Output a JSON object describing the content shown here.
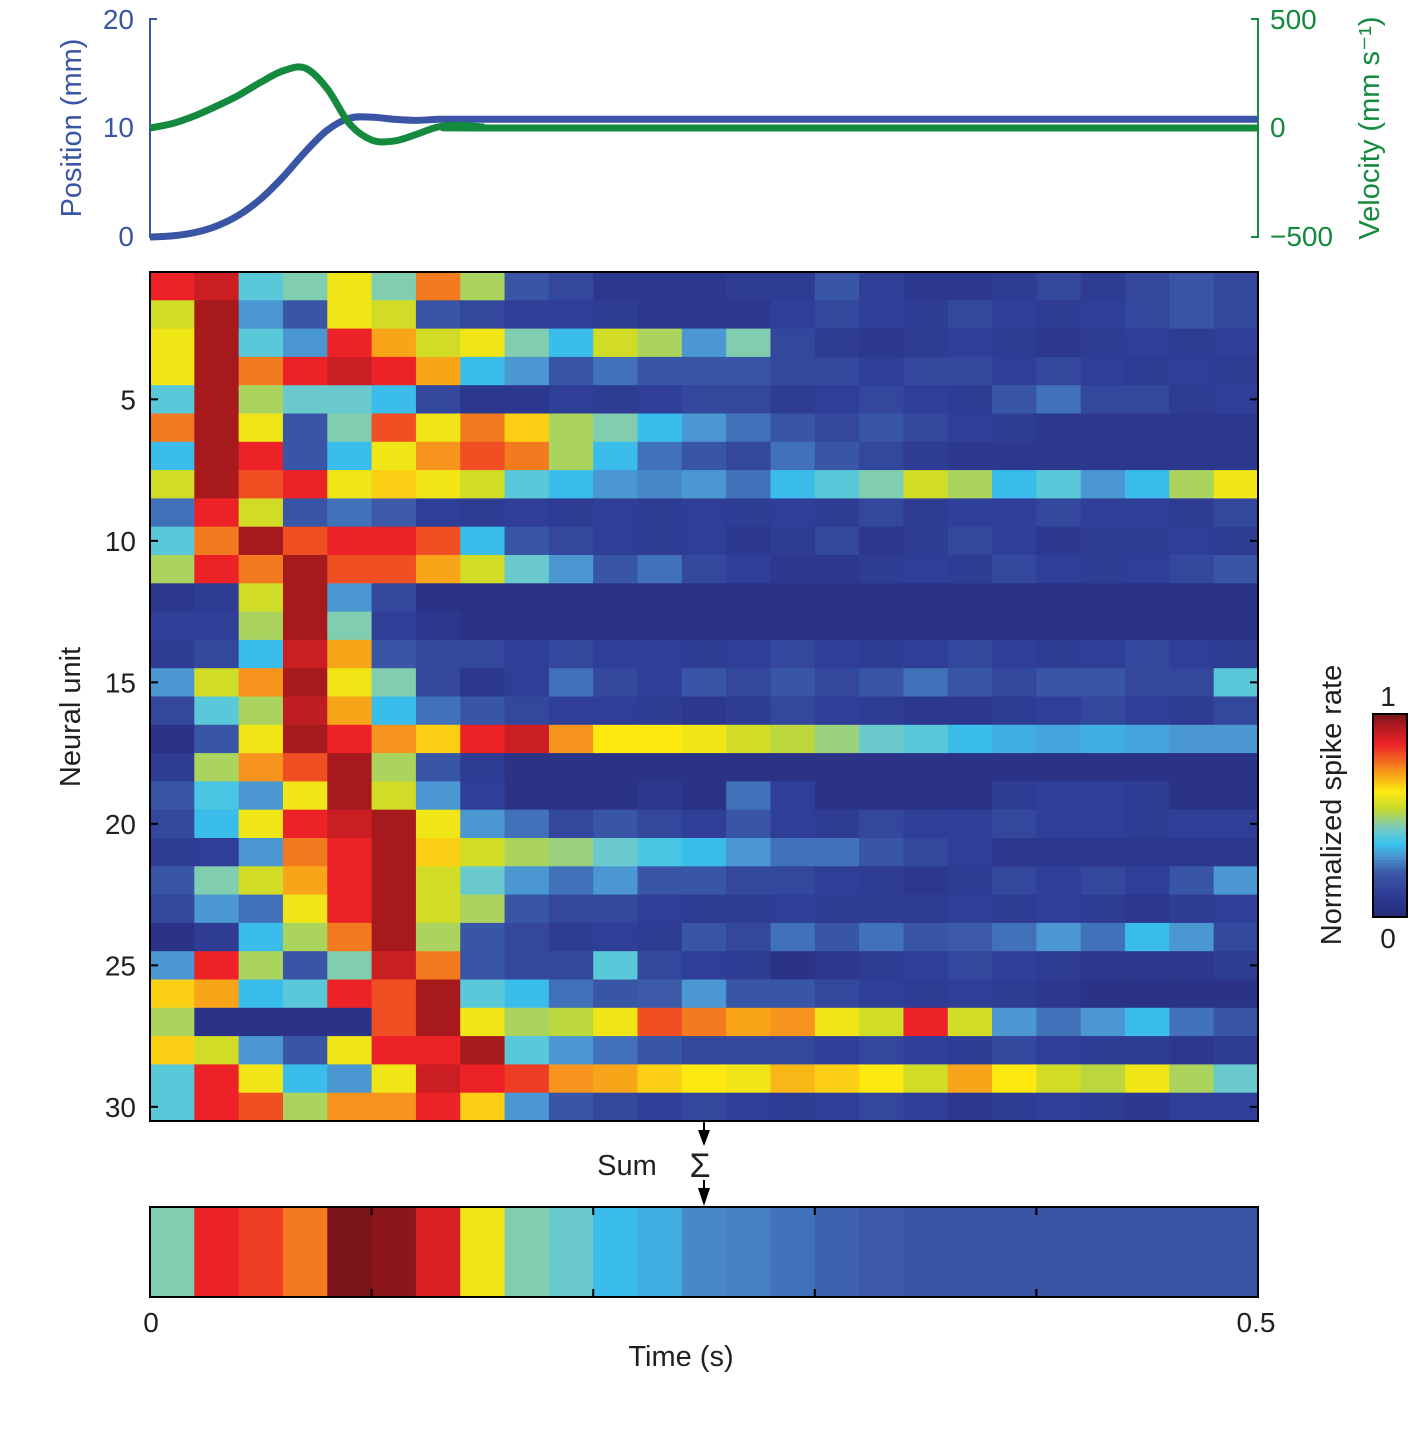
{
  "colors": {
    "position": "#3a55a5",
    "velocity": "#138a3e",
    "colormap": [
      [
        0,
        "#262a78"
      ],
      [
        0.12,
        "#2f3f98"
      ],
      [
        0.22,
        "#3c5aa8"
      ],
      [
        0.3,
        "#4a97d2"
      ],
      [
        0.36,
        "#38c4f0"
      ],
      [
        0.44,
        "#79cbc0"
      ],
      [
        0.53,
        "#c4d92e"
      ],
      [
        0.62,
        "#fde80f"
      ],
      [
        0.72,
        "#f7941d"
      ],
      [
        0.85,
        "#ec2227"
      ],
      [
        0.93,
        "#b71c21"
      ],
      [
        1,
        "#7a1418"
      ]
    ]
  },
  "chart_data": [
    {
      "type": "line",
      "panel": "kinematics",
      "xlim": [
        0,
        0.5
      ],
      "left_axis": {
        "label": "Position (mm)",
        "ylim": [
          0,
          20
        ],
        "ticks": [
          "0",
          "10",
          "20"
        ]
      },
      "right_axis": {
        "label": "Velocity (mm s⁻¹)",
        "ylim": [
          -500,
          500
        ],
        "ticks": [
          "−500",
          "0",
          "500"
        ]
      },
      "x": [
        0,
        0.01,
        0.02,
        0.03,
        0.04,
        0.05,
        0.06,
        0.07,
        0.08,
        0.09,
        0.1,
        0.11,
        0.12,
        0.13,
        0.14,
        0.15,
        0.16,
        0.5
      ],
      "series": [
        {
          "axis": "left",
          "values": [
            0,
            0.1,
            0.4,
            1.0,
            2.0,
            3.5,
            5.5,
            7.8,
            9.8,
            10.9,
            11.0,
            10.8,
            10.7,
            10.8,
            10.8,
            10.8,
            10.8,
            10.8
          ]
        },
        {
          "axis": "right",
          "values": [
            0,
            20,
            55,
            100,
            150,
            210,
            262,
            275,
            180,
            20,
            -55,
            -60,
            -30,
            5,
            12,
            5,
            0,
            0
          ]
        }
      ]
    },
    {
      "type": "heatmap",
      "panel": "neural-units",
      "xlim": [
        0,
        0.5
      ],
      "ylabel": "Neural unit",
      "yticks": [
        "5",
        "10",
        "15",
        "20",
        "25",
        "30"
      ],
      "colorbar": {
        "label": "Normalized spike rate",
        "min_label": "0",
        "max_label": "1",
        "range": [
          0,
          1
        ]
      },
      "rows": [
        [
          0.85,
          0.9,
          0.4,
          0.45,
          0.6,
          0.45,
          0.75,
          0.5,
          0.2,
          0.15,
          0.08,
          0.08,
          0.08,
          0.1,
          0.1,
          0.2,
          0.12,
          0.08,
          0.08,
          0.1,
          0.15,
          0.1,
          0.15,
          0.2,
          0.15
        ],
        [
          0.55,
          0.95,
          0.3,
          0.2,
          0.6,
          0.55,
          0.2,
          0.15,
          0.12,
          0.12,
          0.1,
          0.08,
          0.08,
          0.08,
          0.12,
          0.15,
          0.12,
          0.1,
          0.15,
          0.12,
          0.1,
          0.12,
          0.15,
          0.2,
          0.15
        ],
        [
          0.6,
          0.95,
          0.4,
          0.3,
          0.85,
          0.7,
          0.55,
          0.6,
          0.45,
          0.35,
          0.55,
          0.5,
          0.3,
          0.45,
          0.15,
          0.1,
          0.08,
          0.1,
          0.12,
          0.1,
          0.08,
          0.1,
          0.12,
          0.1,
          0.12
        ],
        [
          0.6,
          0.95,
          0.75,
          0.85,
          0.9,
          0.85,
          0.7,
          0.35,
          0.3,
          0.2,
          0.25,
          0.2,
          0.2,
          0.2,
          0.15,
          0.15,
          0.12,
          0.15,
          0.15,
          0.12,
          0.15,
          0.12,
          0.1,
          0.12,
          0.1
        ],
        [
          0.4,
          0.95,
          0.5,
          0.42,
          0.42,
          0.35,
          0.15,
          0.08,
          0.08,
          0.12,
          0.1,
          0.12,
          0.15,
          0.15,
          0.1,
          0.12,
          0.15,
          0.12,
          0.1,
          0.2,
          0.25,
          0.15,
          0.15,
          0.1,
          0.12
        ],
        [
          0.75,
          0.95,
          0.6,
          0.2,
          0.45,
          0.8,
          0.6,
          0.75,
          0.65,
          0.5,
          0.45,
          0.35,
          0.3,
          0.25,
          0.2,
          0.15,
          0.2,
          0.15,
          0.12,
          0.1,
          0.08,
          0.08,
          0.08,
          0.08,
          0.08
        ],
        [
          0.35,
          0.95,
          0.85,
          0.2,
          0.35,
          0.6,
          0.72,
          0.8,
          0.75,
          0.5,
          0.35,
          0.25,
          0.2,
          0.15,
          0.25,
          0.2,
          0.15,
          0.1,
          0.08,
          0.08,
          0.08,
          0.08,
          0.08,
          0.08,
          0.08
        ],
        [
          0.55,
          0.95,
          0.8,
          0.85,
          0.6,
          0.65,
          0.6,
          0.55,
          0.4,
          0.35,
          0.3,
          0.28,
          0.3,
          0.25,
          0.35,
          0.4,
          0.45,
          0.55,
          0.5,
          0.35,
          0.4,
          0.3,
          0.35,
          0.5,
          0.6
        ],
        [
          0.25,
          0.85,
          0.55,
          0.2,
          0.25,
          0.22,
          0.12,
          0.1,
          0.12,
          0.1,
          0.12,
          0.1,
          0.12,
          0.1,
          0.12,
          0.1,
          0.15,
          0.1,
          0.12,
          0.12,
          0.15,
          0.12,
          0.12,
          0.1,
          0.15
        ],
        [
          0.4,
          0.75,
          0.95,
          0.8,
          0.85,
          0.85,
          0.8,
          0.35,
          0.2,
          0.15,
          0.12,
          0.1,
          0.12,
          0.08,
          0.1,
          0.15,
          0.08,
          0.1,
          0.15,
          0.12,
          0.08,
          0.1,
          0.1,
          0.12,
          0.1
        ],
        [
          0.5,
          0.85,
          0.75,
          0.95,
          0.8,
          0.8,
          0.7,
          0.55,
          0.42,
          0.3,
          0.2,
          0.25,
          0.15,
          0.12,
          0.08,
          0.08,
          0.1,
          0.12,
          0.1,
          0.15,
          0.12,
          0.1,
          0.12,
          0.15,
          0.2
        ],
        [
          0.08,
          0.1,
          0.55,
          0.95,
          0.3,
          0.15,
          0.05,
          0.05,
          0.05,
          0.05,
          0.05,
          0.05,
          0.05,
          0.05,
          0.05,
          0.05,
          0.05,
          0.05,
          0.05,
          0.05,
          0.05,
          0.05,
          0.05,
          0.05,
          0.05
        ],
        [
          0.12,
          0.12,
          0.5,
          0.95,
          0.45,
          0.12,
          0.08,
          0.05,
          0.05,
          0.05,
          0.05,
          0.05,
          0.05,
          0.05,
          0.05,
          0.05,
          0.05,
          0.05,
          0.05,
          0.05,
          0.05,
          0.05,
          0.05,
          0.05,
          0.05
        ],
        [
          0.1,
          0.15,
          0.35,
          0.9,
          0.7,
          0.2,
          0.15,
          0.15,
          0.12,
          0.15,
          0.12,
          0.12,
          0.1,
          0.12,
          0.15,
          0.12,
          0.1,
          0.12,
          0.15,
          0.12,
          0.1,
          0.12,
          0.15,
          0.12,
          0.1
        ],
        [
          0.3,
          0.55,
          0.72,
          0.95,
          0.6,
          0.45,
          0.15,
          0.08,
          0.12,
          0.25,
          0.15,
          0.12,
          0.2,
          0.15,
          0.2,
          0.15,
          0.2,
          0.25,
          0.2,
          0.15,
          0.2,
          0.2,
          0.15,
          0.15,
          0.4
        ],
        [
          0.15,
          0.4,
          0.5,
          0.92,
          0.7,
          0.35,
          0.25,
          0.2,
          0.15,
          0.12,
          0.12,
          0.1,
          0.08,
          0.1,
          0.15,
          0.12,
          0.1,
          0.08,
          0.08,
          0.1,
          0.12,
          0.15,
          0.12,
          0.1,
          0.15
        ],
        [
          0.05,
          0.2,
          0.6,
          0.95,
          0.85,
          0.72,
          0.65,
          0.85,
          0.9,
          0.72,
          0.62,
          0.62,
          0.6,
          0.55,
          0.52,
          0.48,
          0.42,
          0.4,
          0.35,
          0.33,
          0.32,
          0.33,
          0.32,
          0.3,
          0.3
        ],
        [
          0.1,
          0.5,
          0.72,
          0.8,
          0.95,
          0.5,
          0.2,
          0.1,
          0.05,
          0.05,
          0.05,
          0.05,
          0.05,
          0.05,
          0.05,
          0.05,
          0.05,
          0.05,
          0.05,
          0.05,
          0.05,
          0.05,
          0.05,
          0.05,
          0.05
        ],
        [
          0.2,
          0.38,
          0.3,
          0.6,
          0.95,
          0.55,
          0.3,
          0.12,
          0.05,
          0.05,
          0.05,
          0.08,
          0.05,
          0.25,
          0.12,
          0.05,
          0.05,
          0.05,
          0.05,
          0.1,
          0.12,
          0.12,
          0.1,
          0.05,
          0.05
        ],
        [
          0.15,
          0.35,
          0.6,
          0.85,
          0.9,
          0.95,
          0.6,
          0.3,
          0.25,
          0.15,
          0.2,
          0.15,
          0.12,
          0.2,
          0.12,
          0.1,
          0.15,
          0.12,
          0.12,
          0.15,
          0.12,
          0.12,
          0.1,
          0.12,
          0.12
        ],
        [
          0.1,
          0.12,
          0.3,
          0.75,
          0.85,
          0.95,
          0.65,
          0.55,
          0.5,
          0.48,
          0.42,
          0.38,
          0.35,
          0.3,
          0.25,
          0.25,
          0.2,
          0.15,
          0.12,
          0.08,
          0.08,
          0.08,
          0.08,
          0.08,
          0.08
        ],
        [
          0.2,
          0.45,
          0.55,
          0.7,
          0.85,
          0.95,
          0.55,
          0.42,
          0.3,
          0.25,
          0.3,
          0.2,
          0.2,
          0.15,
          0.15,
          0.12,
          0.1,
          0.08,
          0.1,
          0.15,
          0.12,
          0.15,
          0.12,
          0.2,
          0.3
        ],
        [
          0.15,
          0.3,
          0.25,
          0.6,
          0.85,
          0.95,
          0.55,
          0.5,
          0.2,
          0.15,
          0.15,
          0.12,
          0.1,
          0.1,
          0.12,
          0.1,
          0.1,
          0.1,
          0.12,
          0.1,
          0.12,
          0.1,
          0.08,
          0.1,
          0.12
        ],
        [
          0.05,
          0.1,
          0.35,
          0.5,
          0.75,
          0.95,
          0.5,
          0.2,
          0.15,
          0.1,
          0.12,
          0.1,
          0.2,
          0.15,
          0.25,
          0.2,
          0.25,
          0.2,
          0.22,
          0.25,
          0.3,
          0.25,
          0.35,
          0.3,
          0.15
        ],
        [
          0.3,
          0.85,
          0.5,
          0.2,
          0.45,
          0.9,
          0.75,
          0.2,
          0.15,
          0.15,
          0.4,
          0.15,
          0.12,
          0.1,
          0.05,
          0.08,
          0.1,
          0.12,
          0.15,
          0.12,
          0.1,
          0.08,
          0.08,
          0.08,
          0.1
        ],
        [
          0.65,
          0.7,
          0.35,
          0.4,
          0.85,
          0.8,
          0.95,
          0.4,
          0.35,
          0.25,
          0.2,
          0.22,
          0.3,
          0.2,
          0.2,
          0.15,
          0.12,
          0.1,
          0.12,
          0.1,
          0.08,
          0.05,
          0.05,
          0.05,
          0.05
        ],
        [
          0.5,
          0.05,
          0.05,
          0.05,
          0.05,
          0.8,
          0.95,
          0.6,
          0.5,
          0.52,
          0.6,
          0.8,
          0.75,
          0.7,
          0.72,
          0.6,
          0.55,
          0.85,
          0.55,
          0.3,
          0.25,
          0.3,
          0.35,
          0.25,
          0.2
        ],
        [
          0.65,
          0.55,
          0.3,
          0.2,
          0.6,
          0.85,
          0.85,
          0.95,
          0.4,
          0.3,
          0.25,
          0.2,
          0.15,
          0.15,
          0.15,
          0.12,
          0.15,
          0.12,
          0.1,
          0.15,
          0.12,
          0.1,
          0.1,
          0.08,
          0.1
        ],
        [
          0.4,
          0.85,
          0.6,
          0.35,
          0.3,
          0.6,
          0.9,
          0.85,
          0.82,
          0.72,
          0.7,
          0.65,
          0.62,
          0.6,
          0.68,
          0.65,
          0.62,
          0.55,
          0.7,
          0.62,
          0.55,
          0.52,
          0.6,
          0.5,
          0.42
        ],
        [
          0.4,
          0.85,
          0.8,
          0.5,
          0.72,
          0.72,
          0.85,
          0.65,
          0.3,
          0.2,
          0.15,
          0.12,
          0.15,
          0.12,
          0.1,
          0.12,
          0.15,
          0.12,
          0.08,
          0.1,
          0.12,
          0.1,
          0.08,
          0.12,
          0.12
        ]
      ]
    },
    {
      "type": "heatmap",
      "panel": "sum",
      "annotation": "Sum",
      "symbol": "Σ",
      "xlim": [
        0,
        0.5
      ],
      "xlabel": "Time (s)",
      "xticks": [
        0,
        0.1,
        0.2,
        0.3,
        0.4,
        0.5
      ],
      "xtick_labels": [
        "0",
        "0.5"
      ],
      "values": [
        0.45,
        0.85,
        0.82,
        0.75,
        1.0,
        0.98,
        0.88,
        0.6,
        0.45,
        0.42,
        0.35,
        0.33,
        0.28,
        0.27,
        0.25,
        0.23,
        0.22,
        0.2,
        0.2,
        0.2,
        0.2,
        0.2,
        0.2,
        0.2,
        0.2
      ]
    }
  ]
}
